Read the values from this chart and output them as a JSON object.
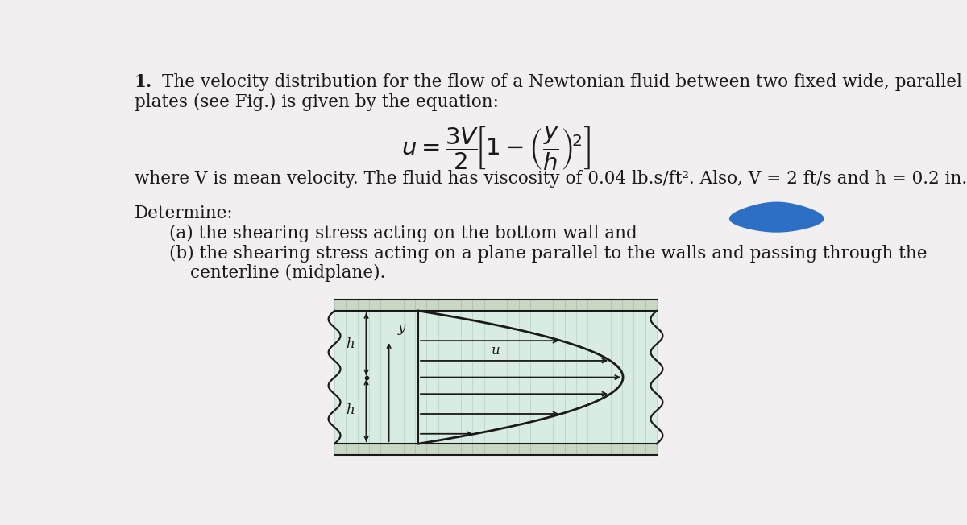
{
  "bg_color": "#f2eff0",
  "text_color": "#1a1a1a",
  "blob_color": "#2d6fc4",
  "fig_line_color": "#1a1a1a",
  "fig_interior_color": "#d8ece4",
  "fig_stripe_color": "#c0d8cc",
  "wall_color": "#c8d8c4",
  "title_bold": "1.",
  "line1": " The velocity distribution for the flow of a Newtonian fluid between two fixed wide, parallel",
  "line2": "plates (see Fig.) is given by the equation:",
  "body_text": "where V is mean velocity. The fluid has viscosity of 0.04 lb.s/ft². Also, V = 2 ft/s and h = 0.2 in.",
  "determine_label": "Determine:",
  "item_a": "(a) the shearing stress acting on the bottom wall and",
  "item_b": "(b) the shearing stress acting on a plane parallel to the walls and passing through the",
  "item_b2": "centerline (midplane).",
  "label_h": "h",
  "label_y": "y",
  "label_u": "u",
  "fontsize_main": 15.5,
  "fontsize_eq": 21,
  "fontsize_fig_label": 12
}
